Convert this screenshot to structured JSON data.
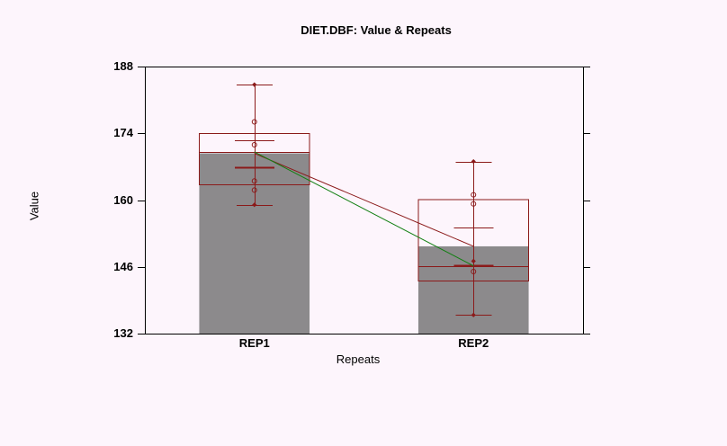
{
  "window": {
    "background_color": "#FDF5FC"
  },
  "chart_data": {
    "type": "box-bar",
    "title": "DIET.DBF: Value & Repeats",
    "xlabel": "Repeats",
    "ylabel": "Value",
    "ylim": [
      132,
      188
    ],
    "yticks": [
      188,
      174,
      160,
      146,
      132
    ],
    "categories": [
      "REP1",
      "REP2"
    ],
    "grid": false,
    "legend": "none",
    "groups": [
      {
        "label": "REP1",
        "bar_mean": 169.8,
        "median": 170.1,
        "box_low": 163.2,
        "box_high": 174.0,
        "whisker_low": 159.0,
        "whisker_high": 184.2,
        "se_low": 166.8,
        "se_high": 172.5,
        "point_circles": [
          176.4,
          171.6,
          164.0,
          162.1
        ],
        "point_diamonds": [
          184.2,
          159.0
        ]
      },
      {
        "label": "REP2",
        "bar_mean": 150.3,
        "median": 146.2,
        "box_low": 143.0,
        "box_high": 160.1,
        "whisker_low": 135.9,
        "whisker_high": 168.1,
        "se_low": 146.4,
        "se_high": 154.3,
        "point_circles": [
          161.1,
          159.2,
          145.0
        ],
        "point_diamonds": [
          168.1,
          147.2,
          135.9
        ]
      }
    ],
    "connectors": [
      {
        "name": "mean-connector",
        "anchor": "bar_mean",
        "color": "#8B1A1A"
      },
      {
        "name": "median-connector",
        "anchor": "median",
        "color": "#117F11"
      }
    ],
    "colors": {
      "box_and_whisker": "#8B1A1A",
      "median_connector_green": "#117F11",
      "bar_fill_gray": "#8C8A8C",
      "frame_black": "#000000",
      "background": "#FDF5FC"
    }
  }
}
